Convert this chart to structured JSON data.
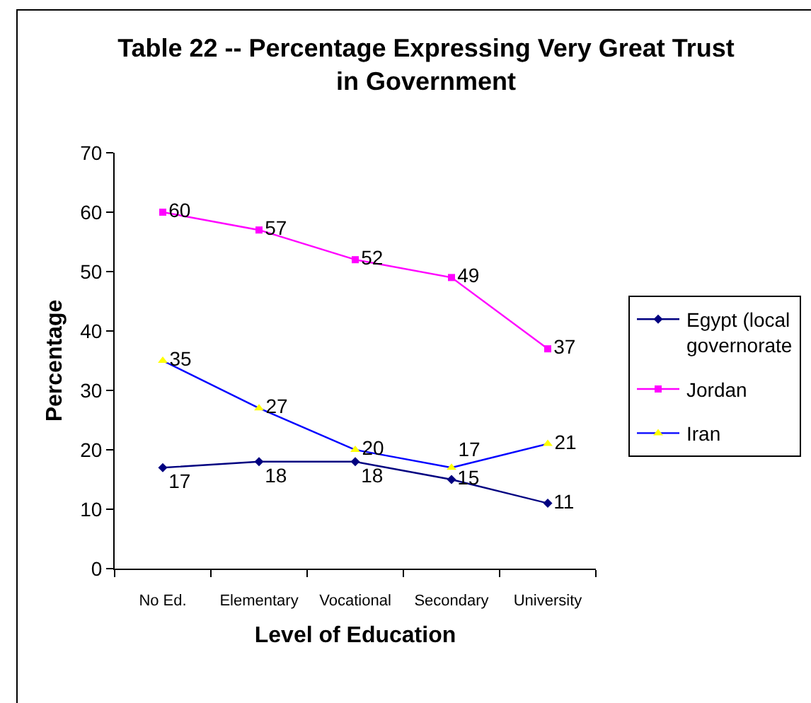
{
  "chart_data": {
    "type": "line",
    "title": "Table 22 -- Percentage Expressing Very Great Trust\nin Government",
    "xlabel": "Level of Education",
    "ylabel": "Percentage",
    "categories": [
      "No Ed.",
      "Elementary",
      "Vocational",
      "Secondary",
      "University"
    ],
    "series": [
      {
        "name": "Egypt (local\ngovernorate",
        "color": "#000080",
        "marker": "diamond",
        "values": [
          17,
          18,
          18,
          15,
          11
        ]
      },
      {
        "name": "Jordan",
        "color": "#ff00ff",
        "marker": "square",
        "values": [
          60,
          57,
          52,
          49,
          37
        ]
      },
      {
        "name": "Iran",
        "color": "#0000ff",
        "marker": "triangle",
        "colors": [
          "#ffff00",
          "#ffff00",
          "#ffff00",
          "#ffff00",
          "#ffff00"
        ],
        "values": [
          35,
          27,
          20,
          17,
          21
        ]
      }
    ],
    "ylim": [
      0,
      70
    ],
    "yticks": [
      0,
      10,
      20,
      30,
      40,
      50,
      60,
      70
    ],
    "data_labels": true,
    "grid": false,
    "legend": "right",
    "line_style": "solid"
  }
}
